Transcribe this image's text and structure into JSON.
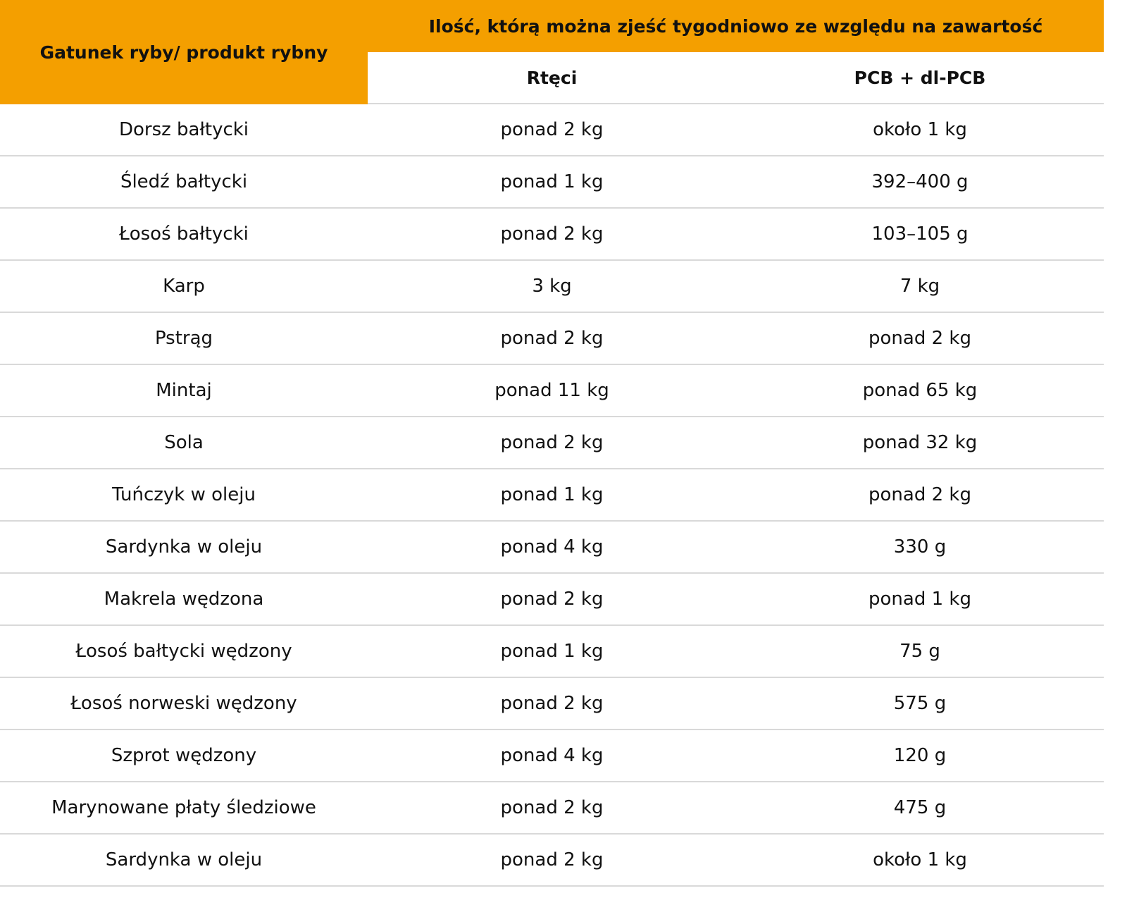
{
  "header": {
    "title": "Gatunek ryby/ produkt rybny",
    "group": "Ilość, którą można zjeść tygodniowo ze względu na zawartość",
    "columns": [
      "Rtęci",
      "PCB + dl-PCB"
    ]
  },
  "table": {
    "rows": [
      [
        "Dorsz bałtycki",
        "ponad 2 kg",
        "około 1 kg"
      ],
      [
        "Śledź bałtycki",
        "ponad 1 kg",
        "392–400 g"
      ],
      [
        "Łosoś bałtycki",
        "ponad 2 kg",
        "103–105 g"
      ],
      [
        "Karp",
        "3 kg",
        "7 kg"
      ],
      [
        "Pstrąg",
        "ponad 2 kg",
        "ponad 2 kg"
      ],
      [
        "Mintaj",
        "ponad 11 kg",
        "ponad 65 kg"
      ],
      [
        "Sola",
        "ponad 2 kg",
        "ponad 32 kg"
      ],
      [
        "Tuńczyk w oleju",
        "ponad 1 kg",
        "ponad 2 kg"
      ],
      [
        "Sardynka w oleju",
        "ponad 4 kg",
        "330 g"
      ],
      [
        "Makrela wędzona",
        "ponad 2 kg",
        "ponad 1 kg"
      ],
      [
        "Łosoś bałtycki wędzony",
        "ponad 1 kg",
        "75 g"
      ],
      [
        "Łosoś norweski wędzony",
        "ponad 2 kg",
        "575 g"
      ],
      [
        "Szprot wędzony",
        "ponad 4 kg",
        "120 g"
      ],
      [
        "Marynowane płaty śledziowe",
        "ponad 2 kg",
        "475 g"
      ],
      [
        "Sardynka w oleju",
        "ponad 2 kg",
        "około 1 kg"
      ]
    ]
  }
}
